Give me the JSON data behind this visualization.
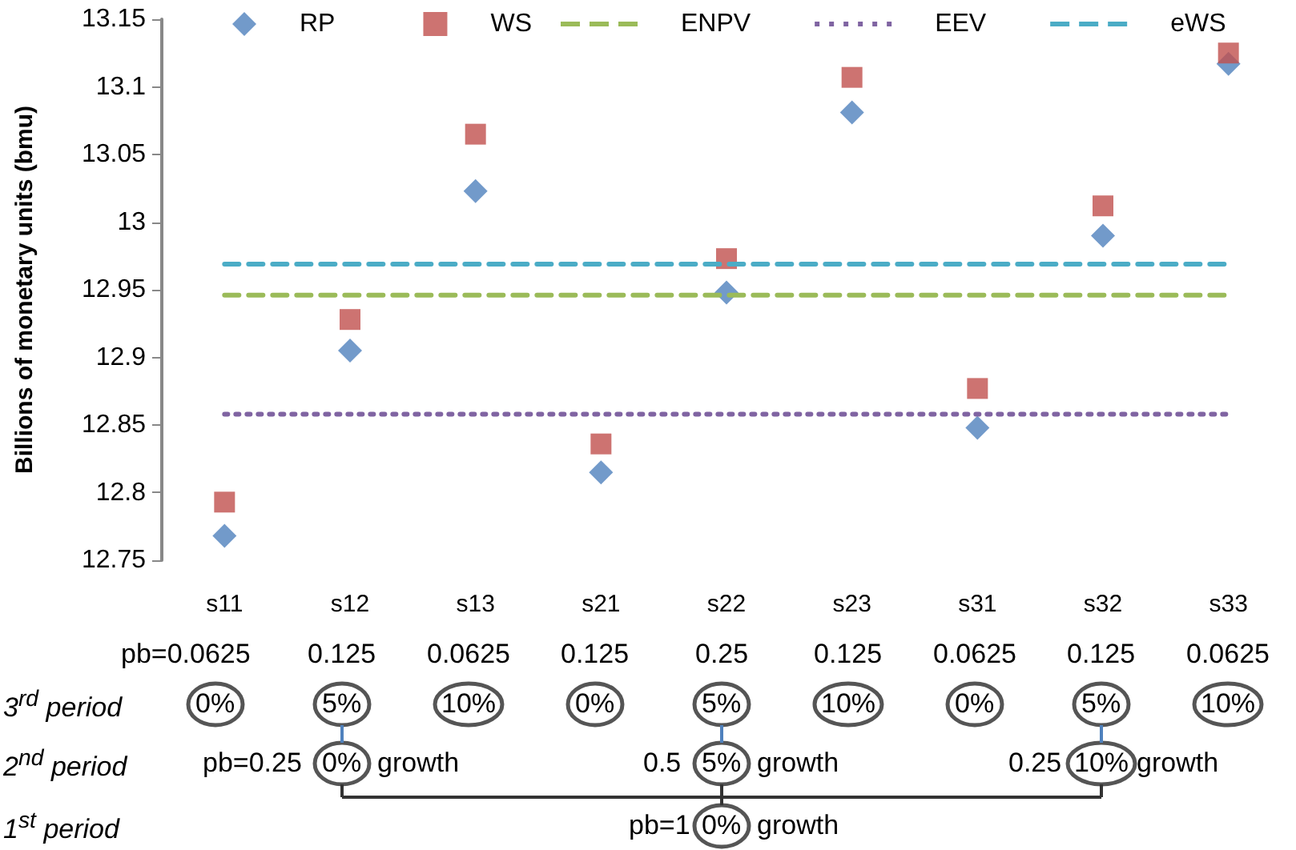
{
  "chart_data": {
    "type": "scatter",
    "ylabel": "Billions of monetary units (bmu)",
    "categories": [
      "s11",
      "s12",
      "s13",
      "s21",
      "s22",
      "s23",
      "s31",
      "s32",
      "s33"
    ],
    "series": [
      {
        "name": "RP",
        "color": "#4f81bd",
        "marker": "diamond",
        "values": [
          12.768,
          12.905,
          13.023,
          12.815,
          12.948,
          13.081,
          12.848,
          12.99,
          13.117
        ]
      },
      {
        "name": "WS",
        "color": "#c0504d",
        "marker": "square",
        "values": [
          12.793,
          12.928,
          13.065,
          12.836,
          12.973,
          13.107,
          12.877,
          13.012,
          13.125
        ]
      },
      {
        "name": "ENPV",
        "type": "line",
        "color": "#9bbb59",
        "marker": "none",
        "line_style": "dashed",
        "values": [
          12.946,
          12.946,
          12.946,
          12.946,
          12.946,
          12.946,
          12.946,
          12.946,
          12.946
        ]
      },
      {
        "name": "EEV",
        "type": "line",
        "color": "#8064a2",
        "marker": "none",
        "line_style": "dotted",
        "values": [
          12.858,
          12.858,
          12.858,
          12.858,
          12.858,
          12.858,
          12.858,
          12.858,
          12.858
        ]
      },
      {
        "name": "eWS",
        "type": "line",
        "color": "#4bacc6",
        "marker": "none",
        "line_style": "dashed",
        "values": [
          12.969,
          12.969,
          12.969,
          12.969,
          12.969,
          12.969,
          12.969,
          12.969,
          12.969
        ]
      }
    ],
    "ylim": [
      12.75,
      13.15
    ],
    "yticks": [
      12.75,
      12.8,
      12.85,
      12.9,
      12.95,
      13,
      13.05,
      13.1,
      13.15
    ],
    "grid": false,
    "legend": "top",
    "annotations": [
      "pb=0.0625",
      "0.125",
      "0.0625",
      "0.125",
      "0.25",
      "0.125",
      "0.0625",
      "0.125",
      "0.0625",
      "3$^{rd}$ period",
      "0%",
      "5%",
      "10%",
      "0%",
      "5%",
      "10%",
      "0%",
      "5%",
      "10%",
      "2$^{nd}$ period",
      "pb=0.25",
      "0%",
      "growth",
      "0.5",
      "5%",
      "growth",
      "0.25",
      "10%",
      "growth",
      "1$^{st}$ period",
      "pb=1",
      "0%",
      "growth"
    ]
  }
}
